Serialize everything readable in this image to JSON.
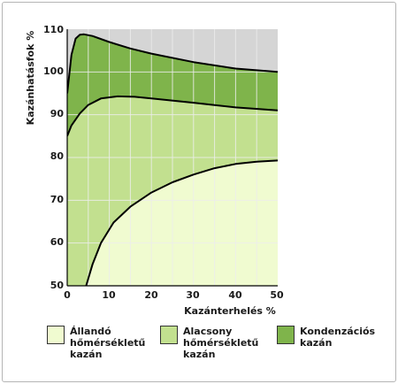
{
  "chart_data": {
    "type": "area",
    "ylabel": "Kazánhatásfok %",
    "xlabel": "Kazánterhelés %",
    "xlim": [
      0,
      50
    ],
    "ylim": [
      50,
      110
    ],
    "x_ticks": [
      "0",
      "10",
      "20",
      "30",
      "40",
      "50"
    ],
    "y_ticks": [
      "50",
      "60",
      "70",
      "80",
      "90",
      "100",
      "110"
    ],
    "grid": true,
    "background_color": "#d5d5d5",
    "grid_color": "#ececec",
    "series": [
      {
        "name": "Kondenzációs\nkazán",
        "color": "#7fb44b",
        "points": [
          [
            0,
            95
          ],
          [
            1,
            104
          ],
          [
            2,
            107.8
          ],
          [
            3,
            108.7
          ],
          [
            4,
            108.8
          ],
          [
            6,
            108.4
          ],
          [
            10,
            107
          ],
          [
            15,
            105.5
          ],
          [
            20,
            104.3
          ],
          [
            30,
            102.3
          ],
          [
            40,
            100.8
          ],
          [
            50,
            100
          ]
        ]
      },
      {
        "name": "Alacsony\nhőmérsékletű\nkazán",
        "color": "#c2e08f",
        "points": [
          [
            0,
            85
          ],
          [
            1,
            87.5
          ],
          [
            3,
            90.3
          ],
          [
            5,
            92.3
          ],
          [
            8,
            93.8
          ],
          [
            12,
            94.3
          ],
          [
            16,
            94.2
          ],
          [
            20,
            93.8
          ],
          [
            30,
            92.8
          ],
          [
            40,
            91.7
          ],
          [
            50,
            91
          ]
        ]
      },
      {
        "name": "Állandó\nhőmérsékletű\nkazán",
        "color": "#f0fbd0",
        "points": [
          [
            4.5,
            50
          ],
          [
            6,
            55
          ],
          [
            8,
            60
          ],
          [
            11,
            64.8
          ],
          [
            15,
            68.5
          ],
          [
            20,
            71.8
          ],
          [
            25,
            74.2
          ],
          [
            30,
            76
          ],
          [
            35,
            77.5
          ],
          [
            40,
            78.5
          ],
          [
            45,
            79
          ],
          [
            50,
            79.3
          ]
        ]
      }
    ]
  }
}
